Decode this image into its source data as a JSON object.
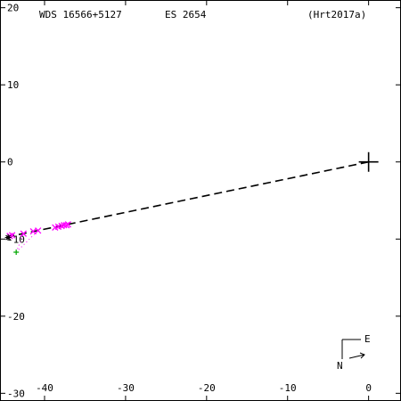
{
  "chart_data": {
    "type": "scatter",
    "header": {
      "wds": "WDS 16566+5127",
      "discoverer": "ES 2654",
      "reference": "(Hrt2017a)"
    },
    "xlim": [
      -45.5,
      4
    ],
    "ylim": [
      -31,
      21
    ],
    "x_ticks": [
      -40,
      -30,
      -20,
      -10,
      0
    ],
    "y_ticks": [
      20,
      10,
      0,
      -10,
      -20,
      -30
    ],
    "x_tick_labels": [
      "-40",
      "-30",
      "-20",
      "-10",
      "0"
    ],
    "y_tick_labels": [
      "20",
      "10",
      "0",
      "-10",
      "-20",
      "-30"
    ],
    "primary": {
      "x": 0,
      "y": 0
    },
    "linear_fit": {
      "from": [
        0,
        0
      ],
      "to": [
        -44.5,
        -9.7
      ]
    },
    "observations": {
      "color": "#ff00ff",
      "points": [
        {
          "x": -44.3,
          "y": -9.6
        },
        {
          "x": -44.0,
          "y": -9.5
        },
        {
          "x": -42.6,
          "y": -9.3
        },
        {
          "x": -41.4,
          "y": -9.0
        },
        {
          "x": -40.8,
          "y": -8.9
        },
        {
          "x": -38.7,
          "y": -8.5
        },
        {
          "x": -38.3,
          "y": -8.4
        },
        {
          "x": -37.9,
          "y": -8.3
        },
        {
          "x": -37.6,
          "y": -8.2
        },
        {
          "x": -37.3,
          "y": -8.2
        },
        {
          "x": -37.1,
          "y": -8.1
        }
      ]
    },
    "first_obs": {
      "x": -43.5,
      "y": -11.7,
      "color": "#00aa00"
    },
    "last_obs": {
      "x": -44.5,
      "y": -9.8
    },
    "orientation": {
      "north": "N",
      "east": "E"
    }
  }
}
